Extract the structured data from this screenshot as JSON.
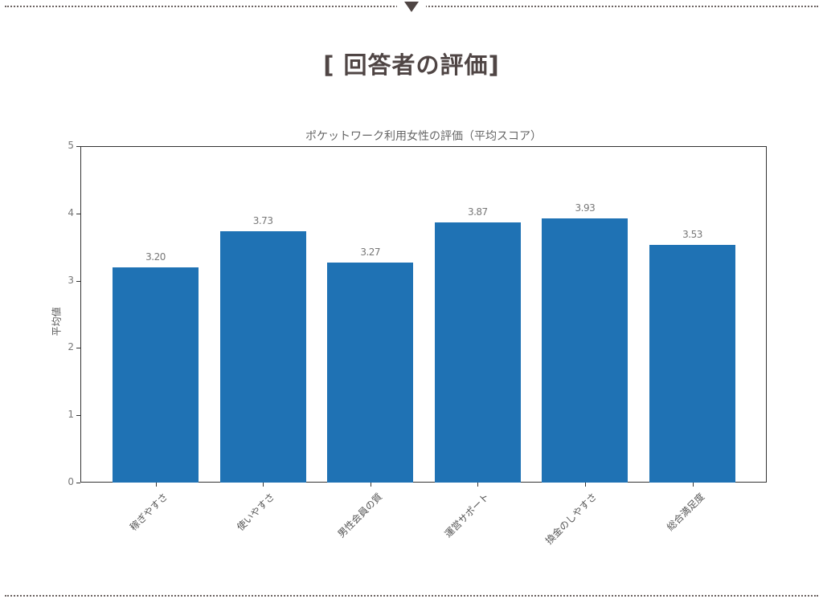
{
  "page": {
    "title": "[ 回答者の評価]"
  },
  "chart_data": {
    "type": "bar",
    "title": "ポケットワーク利用女性の評価（平均スコア）",
    "xlabel": "",
    "ylabel": "平均値",
    "ylim": [
      0,
      5
    ],
    "yticks": [
      "0",
      "1",
      "2",
      "3",
      "4",
      "5"
    ],
    "grid": false,
    "categories": [
      "稼ぎやすさ",
      "使いやすさ",
      "男性会員の質",
      "運営サポート",
      "換金のしやすさ",
      "総合満足度"
    ],
    "values": [
      3.2,
      3.73,
      3.27,
      3.87,
      3.93,
      3.53
    ],
    "value_labels": [
      "3.20",
      "3.73",
      "3.27",
      "3.87",
      "3.93",
      "3.53"
    ],
    "bar_color": "#1f72b4",
    "xtick_rotation": 45
  }
}
